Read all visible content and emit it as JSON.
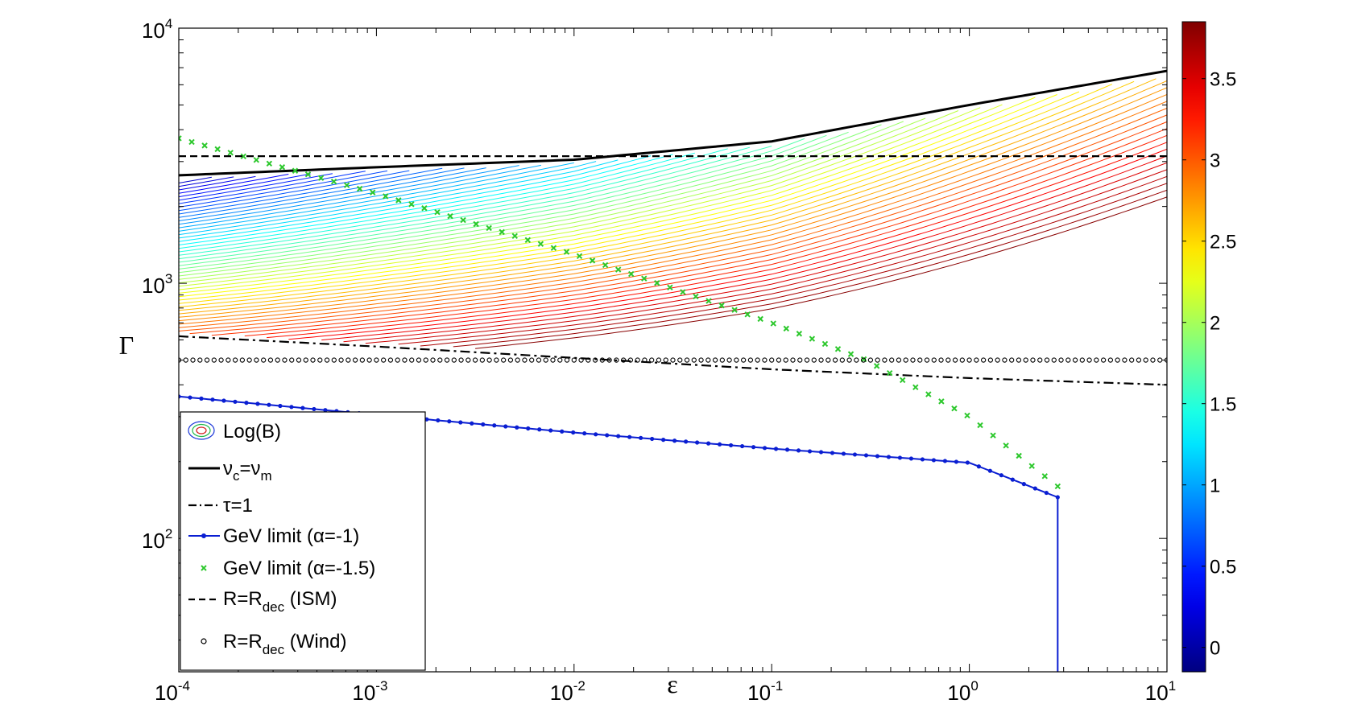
{
  "chart_data": {
    "type": "line",
    "xlabel": "ε",
    "ylabel": "Γ",
    "xscale": "log",
    "yscale": "log",
    "xlim": [
      0.0001,
      10
    ],
    "ylim": [
      30,
      10000
    ],
    "grid": false,
    "legend_position": "bottom-left",
    "x_ticks": [
      {
        "base": "10",
        "exp": "-4"
      },
      {
        "base": "10",
        "exp": "-3"
      },
      {
        "base": "10",
        "exp": "-2"
      },
      {
        "base": "10",
        "exp": "-1"
      },
      {
        "base": "10",
        "exp": "0"
      },
      {
        "base": "10",
        "exp": "1"
      }
    ],
    "y_ticks": [
      {
        "base": "10",
        "exp": "2"
      },
      {
        "base": "10",
        "exp": "3"
      },
      {
        "base": "10",
        "exp": "4"
      }
    ],
    "colorbar": {
      "label": "",
      "range": [
        -0.15,
        3.85
      ],
      "ticks": [
        "0",
        "0.5",
        "1",
        "1.5",
        "2",
        "2.5",
        "3",
        "3.5"
      ],
      "tick_values": [
        0,
        0.5,
        1,
        1.5,
        2,
        2.5,
        3,
        3.5
      ],
      "colormap": "jet"
    },
    "contours": {
      "name": "Log(B)",
      "count": 60,
      "levels_range": [
        -0.15,
        3.85
      ],
      "description": "contour lines of Log(B) between the nu_c=nu_m curve and the tau=1 curve"
    },
    "series": [
      {
        "name": "νc=νm",
        "legend": {
          "main": "ν",
          "sub1": "c",
          "mid": "=ν",
          "sub2": "m"
        },
        "style": "solid",
        "color": "#000000",
        "x": [
          0.0001,
          0.001,
          0.01,
          0.1,
          1,
          10
        ],
        "y": [
          2650,
          2850,
          3050,
          3600,
          5000,
          6800
        ]
      },
      {
        "name": "τ=1",
        "legend": {
          "main": "τ=1"
        },
        "style": "dashdot",
        "color": "#000000",
        "x": [
          0.0001,
          0.001,
          0.01,
          0.1,
          1,
          10
        ],
        "y": [
          620,
          565,
          510,
          460,
          425,
          400
        ]
      },
      {
        "name": "GeV limit (α=-1)",
        "legend": {
          "main": "GeV limit (α=-1)"
        },
        "style": "solid-dots",
        "color": "#0a1ed2",
        "x": [
          0.0001,
          0.001,
          0.01,
          0.1,
          1,
          2.8
        ],
        "y": [
          360,
          305,
          260,
          225,
          198,
          145
        ]
      },
      {
        "name": "GeV limit (α=-1.5)",
        "legend": {
          "main": "GeV limit (α=-1.5)"
        },
        "style": "x-markers",
        "color": "#2dc82d",
        "x": [
          0.0001,
          0.001,
          0.01,
          0.1,
          0.3,
          1,
          2.8
        ],
        "y": [
          3700,
          2250,
          1300,
          700,
          500,
          300,
          160
        ]
      },
      {
        "name": "R=Rdec (ISM)",
        "legend": {
          "main": "R=R",
          "sub1": "dec",
          "tail": " (ISM)"
        },
        "style": "dashed",
        "color": "#000000",
        "x": [
          0.0001,
          10
        ],
        "y": [
          3150,
          3150
        ]
      },
      {
        "name": "R=Rdec (Wind)",
        "legend": {
          "main": "R=R",
          "sub1": "dec",
          "tail": " (Wind)"
        },
        "style": "circles",
        "color": "#000000",
        "x": [
          0.0001,
          10
        ],
        "y": [
          500,
          500
        ]
      }
    ]
  }
}
